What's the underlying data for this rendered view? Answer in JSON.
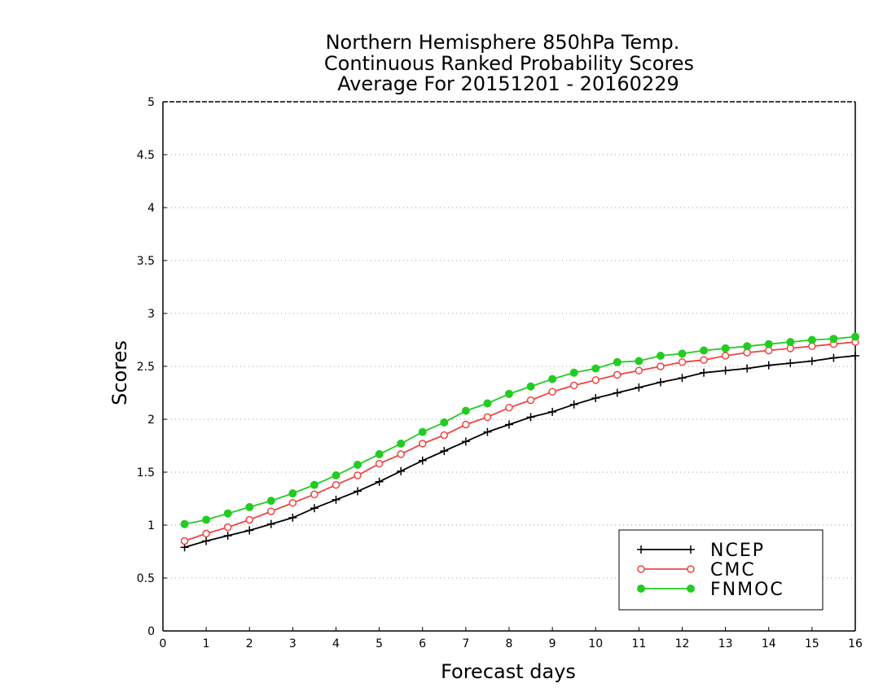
{
  "chart_data": {
    "type": "line",
    "title": [
      "Northern Hemisphere 850hPa Temp.",
      "Continuous Ranked Probability Scores",
      "Average For 20151201 - 20160229"
    ],
    "xlabel": "Forecast days",
    "ylabel": "Scores",
    "xlim": [
      0,
      16
    ],
    "ylim": [
      0,
      5
    ],
    "xticks": [
      "0",
      "1",
      "2",
      "3",
      "4",
      "5",
      "6",
      "7",
      "8",
      "9",
      "10",
      "11",
      "12",
      "13",
      "14",
      "15",
      "16"
    ],
    "yticks": [
      "0",
      "0.5",
      "1",
      "1.5",
      "2",
      "2.5",
      "3",
      "3.5",
      "4",
      "4.5",
      "5"
    ],
    "grid": true,
    "legend_position": "bottom-right",
    "x": [
      0.5,
      1,
      1.5,
      2,
      2.5,
      3,
      3.5,
      4,
      4.5,
      5,
      5.5,
      6,
      6.5,
      7,
      7.5,
      8,
      8.5,
      9,
      9.5,
      10,
      10.5,
      11,
      11.5,
      12,
      12.5,
      13,
      13.5,
      14,
      14.5,
      15,
      15.5,
      16
    ],
    "series": [
      {
        "name": "NCEP",
        "color": "#000000",
        "marker": "plus",
        "values": [
          0.79,
          0.85,
          0.9,
          0.95,
          1.01,
          1.07,
          1.16,
          1.24,
          1.32,
          1.41,
          1.51,
          1.61,
          1.7,
          1.79,
          1.88,
          1.95,
          2.02,
          2.07,
          2.14,
          2.2,
          2.25,
          2.3,
          2.35,
          2.39,
          2.44,
          2.46,
          2.48,
          2.51,
          2.53,
          2.55,
          2.58,
          2.6
        ]
      },
      {
        "name": "CMC",
        "color": "#ee4444",
        "marker": "open-circle",
        "values": [
          0.85,
          0.92,
          0.98,
          1.05,
          1.13,
          1.21,
          1.29,
          1.38,
          1.47,
          1.58,
          1.67,
          1.77,
          1.85,
          1.95,
          2.02,
          2.11,
          2.18,
          2.26,
          2.32,
          2.37,
          2.42,
          2.46,
          2.5,
          2.54,
          2.56,
          2.6,
          2.63,
          2.65,
          2.67,
          2.69,
          2.71,
          2.73
        ]
      },
      {
        "name": "FNMOC",
        "color": "#22cc22",
        "marker": "filled-circle",
        "values": [
          1.01,
          1.05,
          1.11,
          1.17,
          1.23,
          1.3,
          1.38,
          1.47,
          1.57,
          1.67,
          1.77,
          1.88,
          1.97,
          2.08,
          2.15,
          2.24,
          2.31,
          2.38,
          2.44,
          2.48,
          2.54,
          2.55,
          2.6,
          2.62,
          2.65,
          2.67,
          2.69,
          2.71,
          2.73,
          2.75,
          2.76,
          2.78
        ]
      }
    ]
  }
}
